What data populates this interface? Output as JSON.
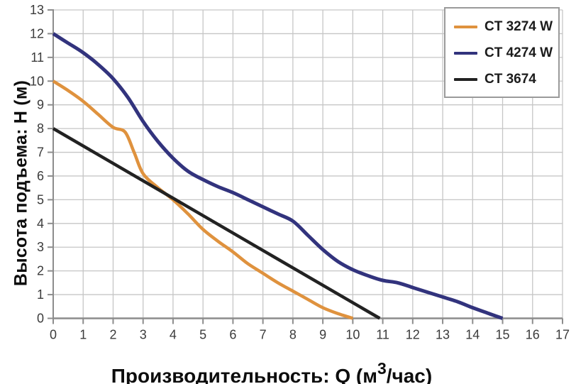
{
  "chart_data": {
    "type": "line",
    "title": "",
    "xlabel": "Производительность: Q (м³/час)",
    "xlabel_parts": {
      "pre": "Производительность: Q (м",
      "sup": "3",
      "post": "/час)"
    },
    "ylabel": "Высота подъема: H (м)",
    "xlim": [
      0,
      17
    ],
    "ylim": [
      0,
      13
    ],
    "x_ticks": [
      0,
      1,
      2,
      3,
      4,
      5,
      6,
      7,
      8,
      9,
      10,
      11,
      12,
      13,
      14,
      15,
      16,
      17
    ],
    "y_ticks": [
      0,
      1,
      2,
      3,
      4,
      5,
      6,
      7,
      8,
      9,
      10,
      11,
      12,
      13
    ],
    "grid": true,
    "legend_position": "top-right",
    "colors": {
      "axis": "#8c8c8c",
      "grid": "#c6c6c6",
      "tick_label": "#3b3b3b",
      "legend_border": "#9a9a9a",
      "background": "#ffffff"
    },
    "series": [
      {
        "name": "CT 3274 W",
        "color": "#df923e",
        "line_width": 4.5,
        "points": [
          [
            0,
            10
          ],
          [
            0.5,
            9.6
          ],
          [
            1,
            9.15
          ],
          [
            1.5,
            8.6
          ],
          [
            2,
            8.05
          ],
          [
            2.4,
            7.85
          ],
          [
            2.7,
            7.0
          ],
          [
            3,
            6.1
          ],
          [
            3.5,
            5.5
          ],
          [
            4,
            5.0
          ],
          [
            4.5,
            4.4
          ],
          [
            5,
            3.75
          ],
          [
            5.5,
            3.25
          ],
          [
            6,
            2.8
          ],
          [
            6.5,
            2.3
          ],
          [
            7,
            1.9
          ],
          [
            7.5,
            1.5
          ],
          [
            8,
            1.15
          ],
          [
            8.5,
            0.8
          ],
          [
            9,
            0.45
          ],
          [
            9.5,
            0.2
          ],
          [
            10,
            0
          ]
        ]
      },
      {
        "name": "CT 4274 W",
        "color": "#32337d",
        "line_width": 5,
        "points": [
          [
            0,
            12
          ],
          [
            0.5,
            11.6
          ],
          [
            1,
            11.2
          ],
          [
            1.5,
            10.7
          ],
          [
            2,
            10.1
          ],
          [
            2.5,
            9.3
          ],
          [
            3,
            8.3
          ],
          [
            3.5,
            7.45
          ],
          [
            4,
            6.75
          ],
          [
            4.5,
            6.2
          ],
          [
            5,
            5.85
          ],
          [
            5.5,
            5.55
          ],
          [
            6,
            5.3
          ],
          [
            6.5,
            5.0
          ],
          [
            7,
            4.7
          ],
          [
            7.5,
            4.4
          ],
          [
            8,
            4.1
          ],
          [
            8.5,
            3.5
          ],
          [
            9,
            2.9
          ],
          [
            9.5,
            2.4
          ],
          [
            10,
            2.05
          ],
          [
            10.5,
            1.8
          ],
          [
            11,
            1.6
          ],
          [
            11.5,
            1.5
          ],
          [
            12,
            1.3
          ],
          [
            12.5,
            1.1
          ],
          [
            13,
            0.9
          ],
          [
            13.5,
            0.7
          ],
          [
            14,
            0.45
          ],
          [
            14.5,
            0.22
          ],
          [
            15,
            0
          ]
        ]
      },
      {
        "name": "CT 3674",
        "color": "#222222",
        "line_width": 4.5,
        "points": [
          [
            0,
            8
          ],
          [
            10.9,
            0
          ]
        ]
      }
    ]
  }
}
